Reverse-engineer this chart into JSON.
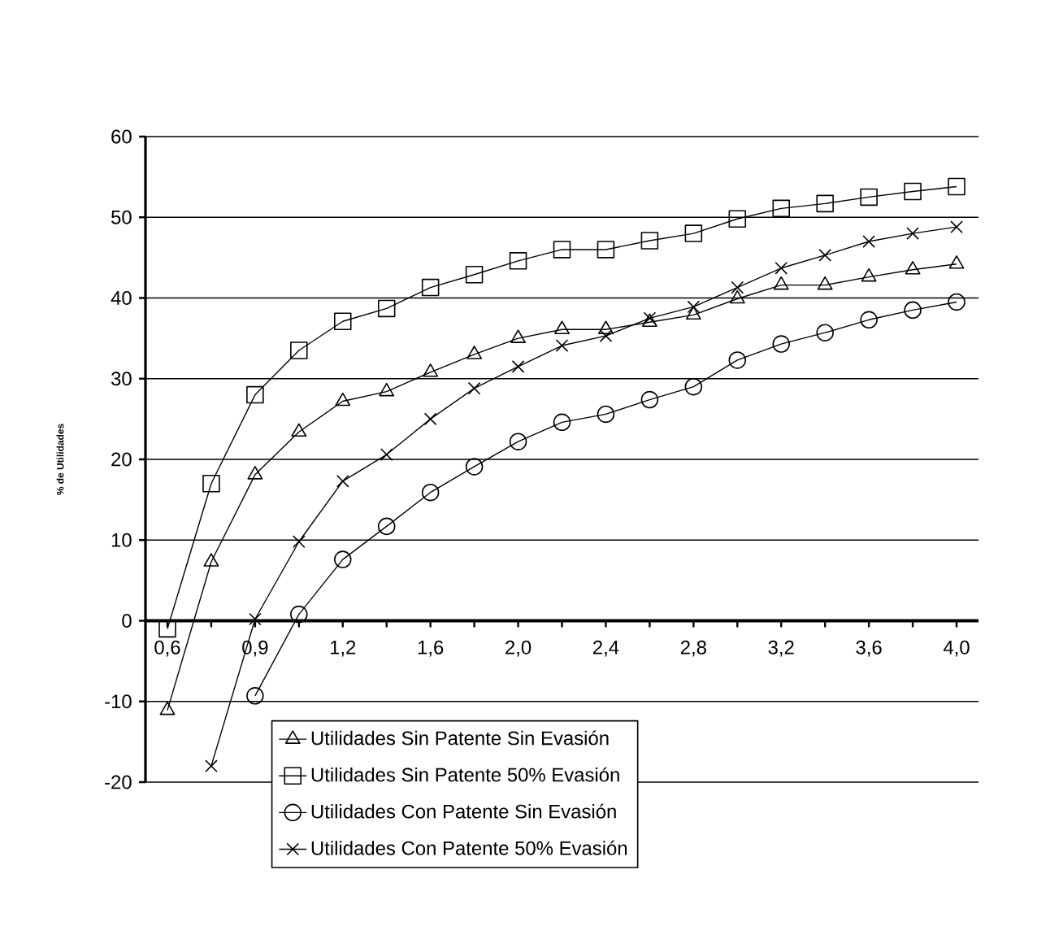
{
  "chart_data": {
    "type": "line",
    "ylabel": "% de Utilidades",
    "categories": [
      "0,6",
      null,
      "0,9",
      null,
      "1,2",
      null,
      "1,6",
      null,
      "2,0",
      null,
      "2,4",
      null,
      "2,8",
      null,
      "3,2",
      null,
      "3,6",
      null,
      "4,0"
    ],
    "series": [
      {
        "name": "Utilidades Sin Patente Sin Evasión",
        "color": "#000000",
        "marker": "triangle",
        "values": [
          -11.1,
          7.3,
          18.1,
          23.4,
          27.2,
          28.4,
          30.8,
          33,
          35,
          36.1,
          36.1,
          37,
          37.9,
          39.9,
          41.6,
          41.6,
          42.6,
          43.5,
          44.2
        ]
      },
      {
        "name": "Utilidades Sin Patente 50% Evasión",
        "color": "#000000",
        "marker": "square",
        "values": [
          -1,
          17,
          28,
          33.5,
          37.1,
          38.7,
          41.3,
          42.9,
          44.6,
          46,
          46,
          47.1,
          48,
          49.8,
          51.1,
          51.7,
          52.5,
          53.2,
          53.8
        ]
      },
      {
        "name": "Utilidades Con Patente Sin Evasión",
        "color": "#000000",
        "marker": "circle",
        "values": [
          null,
          null,
          -9.3,
          0.8,
          7.6,
          11.7,
          15.9,
          19.1,
          22.2,
          24.6,
          25.6,
          27.4,
          29,
          32.3,
          34.3,
          35.7,
          37.3,
          38.5,
          39.5
        ]
      },
      {
        "name": "Utilidades Con Patente 50% Evasión",
        "color": "#000000",
        "marker": "cross",
        "values": [
          null,
          -18,
          0.2,
          9.8,
          17.3,
          20.6,
          25,
          28.8,
          31.5,
          34.1,
          35.3,
          37.5,
          38.9,
          41.3,
          43.7,
          45.3,
          47,
          48,
          48.8
        ]
      }
    ],
    "ylim": [
      -20,
      60
    ],
    "yticks": [
      -20,
      -10,
      0,
      10,
      20,
      30,
      40,
      50,
      60
    ],
    "grid": "y",
    "legend": "bottom",
    "line_style": "solid"
  }
}
